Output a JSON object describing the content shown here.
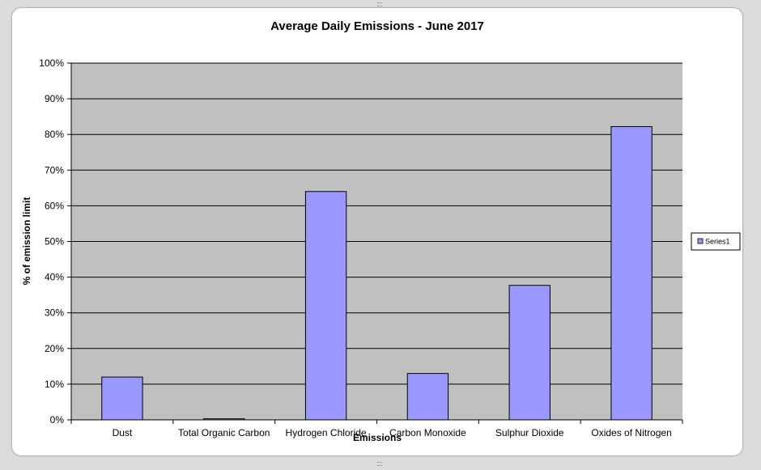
{
  "chart_data": {
    "type": "bar",
    "title": "Average Daily Emissions - June 2017",
    "xlabel": "Emissions",
    "ylabel": "% of emission limit",
    "categories": [
      "Dust",
      "Total Organic Carbon",
      "Hydrogen Chloride",
      "Carbon Monoxide",
      "Sulphur Dioxide",
      "Oxides of Nitrogen"
    ],
    "series": [
      {
        "name": "Series1",
        "values": [
          12,
          0.3,
          64,
          13,
          37.7,
          82.2
        ],
        "color": "#9999ff"
      }
    ],
    "ylim": [
      0,
      100
    ],
    "yticks": [
      "0%",
      "10%",
      "20%",
      "30%",
      "40%",
      "50%",
      "60%",
      "70%",
      "80%",
      "90%",
      "100%"
    ],
    "grid": true,
    "legend": "right",
    "plot_background": "#c0c0c0"
  }
}
